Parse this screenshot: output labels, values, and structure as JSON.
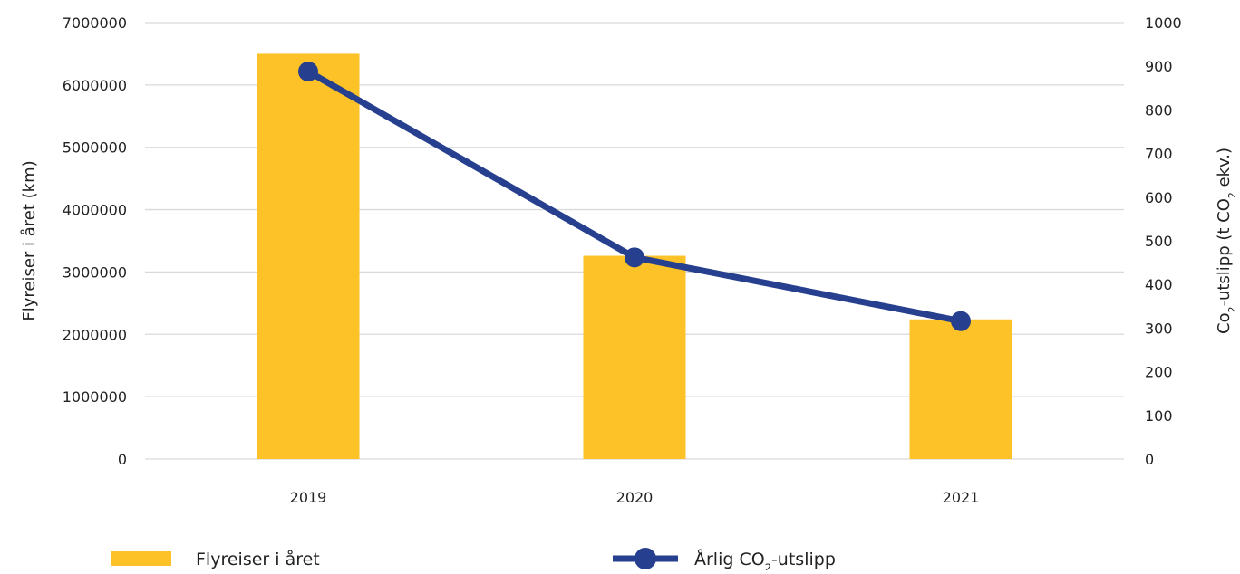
{
  "chart_data": {
    "type": "bar",
    "categories": [
      "2019",
      "2020",
      "2021"
    ],
    "series": [
      {
        "name": "Flyreiser i året",
        "type": "bar",
        "axis": "left",
        "color": "#FCC227",
        "values": [
          6500000,
          3260000,
          2240000
        ]
      },
      {
        "name": "Årlig CO₂-utslipp",
        "type": "line",
        "axis": "right",
        "color": "#263F8E",
        "values": [
          888,
          462,
          316
        ]
      }
    ],
    "y_left": {
      "label": "Flyreiser i året (km)",
      "ylim": [
        0,
        7000000
      ],
      "ticks": [
        "0",
        "1000000",
        "2000000",
        "3000000",
        "4000000",
        "5000000",
        "6000000",
        "7000000"
      ]
    },
    "y_right": {
      "label": "Co₂-utslipp (t CO₂ ekv.)",
      "ylim": [
        0,
        1000
      ],
      "ticks": [
        "0",
        "100",
        "200",
        "300",
        "400",
        "500",
        "600",
        "700",
        "800",
        "900",
        "1000"
      ]
    },
    "grid": true,
    "legend_position": "bottom",
    "gridline_color": "#D9D9D9"
  }
}
